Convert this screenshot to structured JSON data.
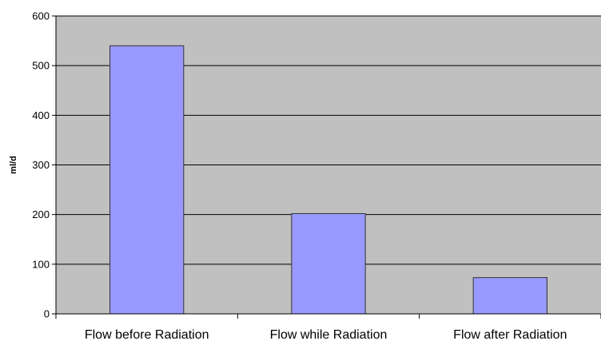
{
  "chart_data": {
    "type": "bar",
    "title": "",
    "xlabel": "",
    "ylabel": "ml/d",
    "categories": [
      "Flow before Radiation",
      "Flow while Radiation",
      "Flow after Radiation"
    ],
    "values": [
      540,
      202,
      73
    ],
    "ylim": [
      0,
      600
    ],
    "yticks": [
      "0",
      "100",
      "200",
      "300",
      "400",
      "500",
      "600"
    ],
    "grid": true,
    "legend": "none",
    "colors": {
      "plot_background": "#c0c0c0",
      "bar_fill": "#9999ff",
      "bar_stroke": "#333333",
      "gridline": "#000000"
    }
  }
}
